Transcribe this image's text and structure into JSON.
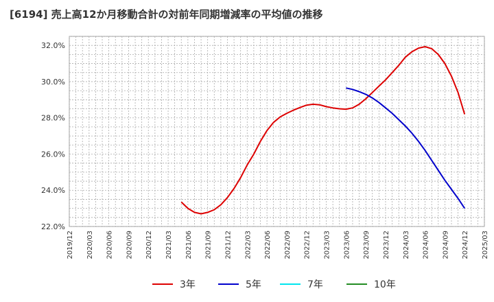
{
  "chart_data": {
    "type": "line",
    "title": "[6194]  売上高12か月移動合計の対前年同期増減率の平均値の推移",
    "xlabel": "",
    "ylabel": "",
    "ylim": [
      22.0,
      32.5
    ],
    "yticks": [
      22.0,
      24.0,
      26.0,
      28.0,
      30.0,
      32.0
    ],
    "ytick_labels": [
      "22.0%",
      "24.0%",
      "26.0%",
      "28.0%",
      "30.0%",
      "32.0%"
    ],
    "x_range": [
      "2019-12",
      "2025-03"
    ],
    "xtick_labels": [
      "2019/12",
      "2020/03",
      "2020/06",
      "2020/09",
      "2020/12",
      "2021/03",
      "2021/06",
      "2021/09",
      "2021/12",
      "2022/03",
      "2022/06",
      "2022/09",
      "2022/12",
      "2023/03",
      "2023/06",
      "2023/09",
      "2023/12",
      "2024/03",
      "2024/06",
      "2024/09",
      "2024/12",
      "2025/03"
    ],
    "grid": true,
    "legend_position": "bottom",
    "series": [
      {
        "name": "3年",
        "color": "#dd0000",
        "points": [
          [
            "2021-05",
            23.35
          ],
          [
            "2021-06",
            23.0
          ],
          [
            "2021-07",
            22.78
          ],
          [
            "2021-08",
            22.7
          ],
          [
            "2021-09",
            22.78
          ],
          [
            "2021-10",
            22.93
          ],
          [
            "2021-11",
            23.2
          ],
          [
            "2021-12",
            23.6
          ],
          [
            "2022-01",
            24.1
          ],
          [
            "2022-02",
            24.7
          ],
          [
            "2022-03",
            25.4
          ],
          [
            "2022-04",
            26.0
          ],
          [
            "2022-05",
            26.7
          ],
          [
            "2022-06",
            27.3
          ],
          [
            "2022-07",
            27.75
          ],
          [
            "2022-08",
            28.05
          ],
          [
            "2022-09",
            28.25
          ],
          [
            "2022-10",
            28.42
          ],
          [
            "2022-11",
            28.57
          ],
          [
            "2022-12",
            28.7
          ],
          [
            "2023-01",
            28.75
          ],
          [
            "2023-02",
            28.72
          ],
          [
            "2023-03",
            28.62
          ],
          [
            "2023-04",
            28.55
          ],
          [
            "2023-05",
            28.5
          ],
          [
            "2023-06",
            28.48
          ],
          [
            "2023-07",
            28.55
          ],
          [
            "2023-08",
            28.75
          ],
          [
            "2023-09",
            29.05
          ],
          [
            "2023-10",
            29.4
          ],
          [
            "2023-11",
            29.75
          ],
          [
            "2023-12",
            30.1
          ],
          [
            "2024-01",
            30.5
          ],
          [
            "2024-02",
            30.9
          ],
          [
            "2024-03",
            31.35
          ],
          [
            "2024-04",
            31.65
          ],
          [
            "2024-05",
            31.85
          ],
          [
            "2024-06",
            31.93
          ],
          [
            "2024-07",
            31.82
          ],
          [
            "2024-08",
            31.5
          ],
          [
            "2024-09",
            31.0
          ],
          [
            "2024-10",
            30.3
          ],
          [
            "2024-11",
            29.4
          ],
          [
            "2024-12",
            28.2
          ]
        ]
      },
      {
        "name": "5年",
        "color": "#0000cc",
        "points": [
          [
            "2023-06",
            29.65
          ],
          [
            "2023-07",
            29.57
          ],
          [
            "2023-08",
            29.45
          ],
          [
            "2023-09",
            29.3
          ],
          [
            "2023-10",
            29.1
          ],
          [
            "2023-11",
            28.85
          ],
          [
            "2023-12",
            28.55
          ],
          [
            "2024-01",
            28.25
          ],
          [
            "2024-02",
            27.9
          ],
          [
            "2024-03",
            27.55
          ],
          [
            "2024-04",
            27.15
          ],
          [
            "2024-05",
            26.7
          ],
          [
            "2024-06",
            26.2
          ],
          [
            "2024-07",
            25.65
          ],
          [
            "2024-08",
            25.1
          ],
          [
            "2024-09",
            24.55
          ],
          [
            "2024-10",
            24.05
          ],
          [
            "2024-11",
            23.55
          ],
          [
            "2024-12",
            23.0
          ]
        ]
      },
      {
        "name": "7年",
        "color": "#00e5ee",
        "points": []
      },
      {
        "name": "10年",
        "color": "#228b22",
        "points": []
      }
    ]
  }
}
